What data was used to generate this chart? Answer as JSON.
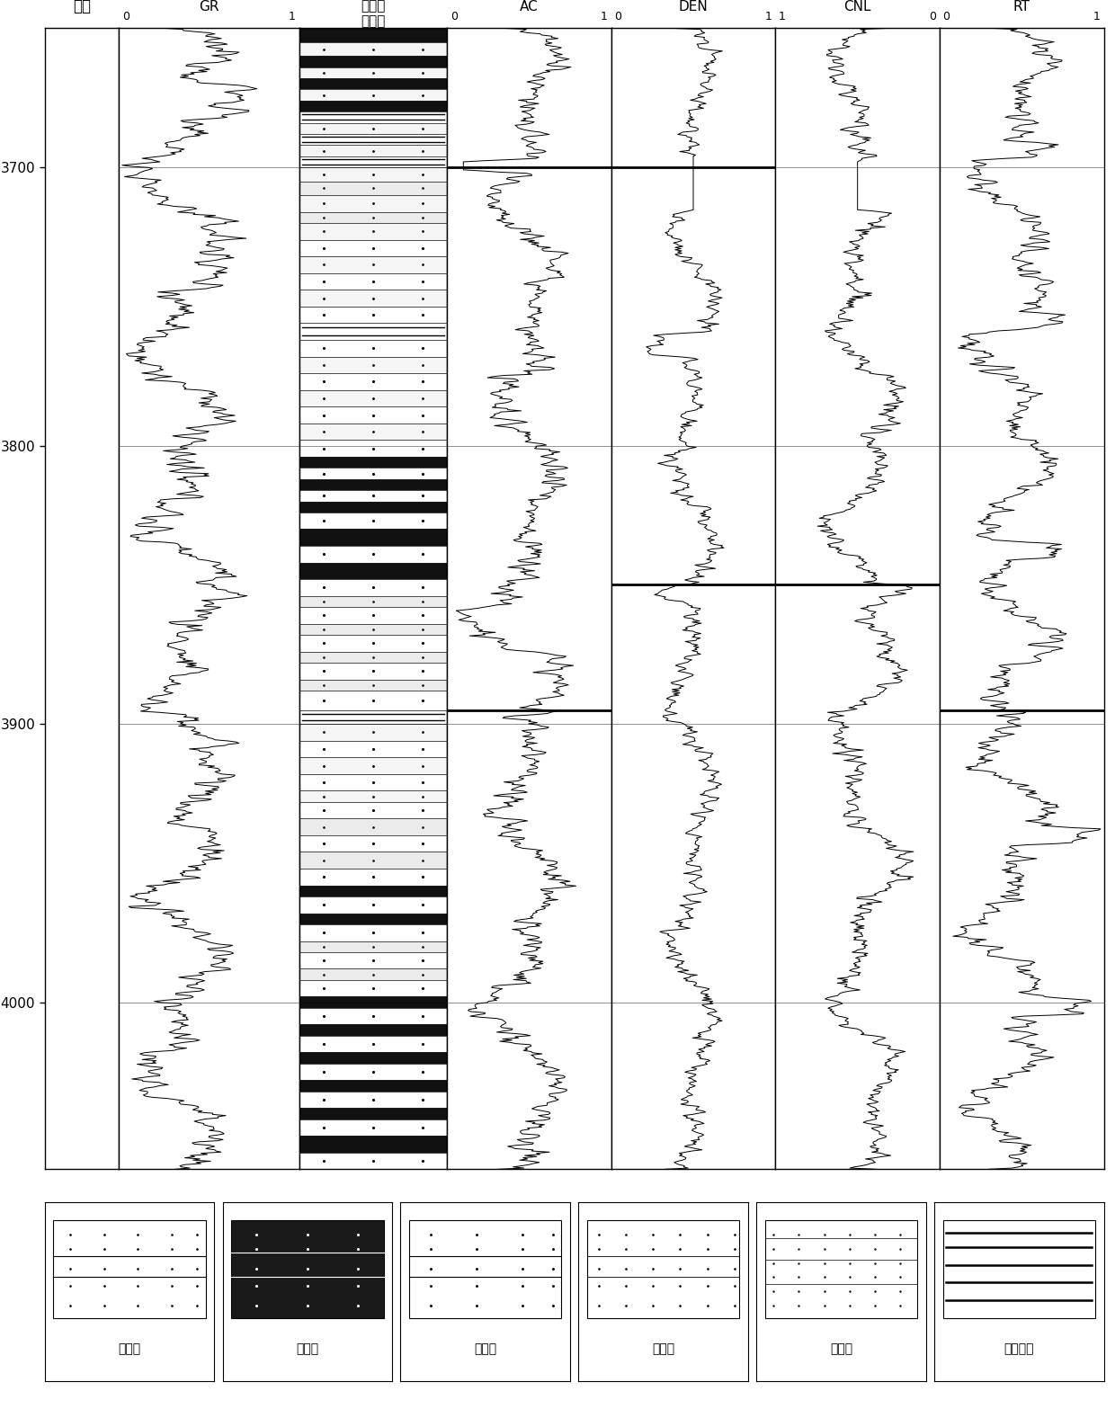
{
  "depth_min": 3650,
  "depth_max": 4060,
  "depth_ticks": [
    3700,
    3800,
    3900,
    4000
  ],
  "legend_items": [
    "砂砾岩",
    "粗砂岩",
    "中砂岩",
    "细砂岩",
    "粉砂岩",
    "砂质砾岩"
  ],
  "track_titles": [
    "GR",
    "AC",
    "DEN",
    "CNL",
    "RT"
  ],
  "depth_title": "深度",
  "lith_title_line1": "不同岩",
  "lith_title_line2": "相类型",
  "background_color": "#ffffff"
}
